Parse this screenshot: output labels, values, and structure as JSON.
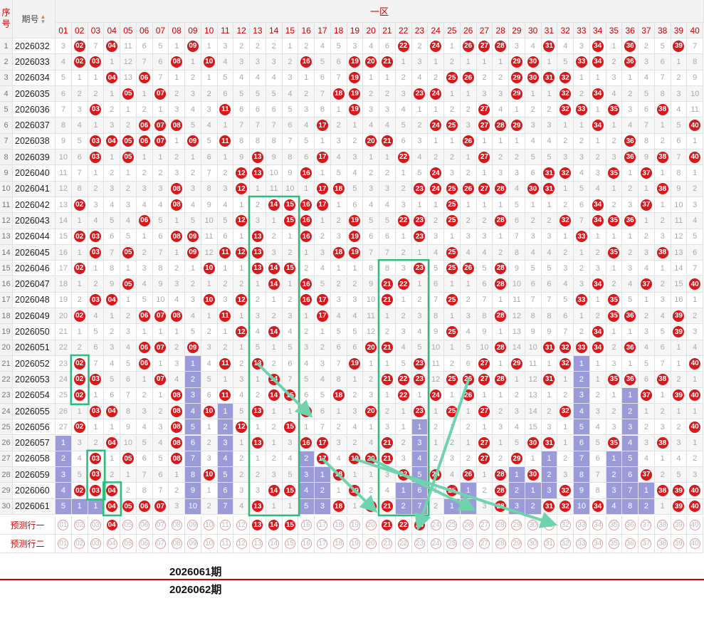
{
  "header": {
    "seq_label": "序号",
    "period_label": "期号",
    "zone_label": "一区",
    "sort_icon": "sort-arrows-icon"
  },
  "numbers": [
    "01",
    "02",
    "03",
    "04",
    "05",
    "06",
    "07",
    "08",
    "09",
    "10",
    "11",
    "12",
    "13",
    "14",
    "15",
    "16",
    "17",
    "18",
    "19",
    "20",
    "21",
    "22",
    "23",
    "24",
    "25",
    "26",
    "27",
    "28",
    "29",
    "30",
    "31",
    "32",
    "33",
    "34",
    "35",
    "36",
    "37",
    "38",
    "39",
    "40"
  ],
  "periods": [
    "2026032",
    "2026033",
    "2026034",
    "2026035",
    "2026036",
    "2026037",
    "2026038",
    "2026039",
    "2026040",
    "2026041",
    "2026042",
    "2026043",
    "2026044",
    "2026045",
    "2026046",
    "2026047",
    "2026048",
    "2026049",
    "2026050",
    "2026051",
    "2026052",
    "2026053",
    "2026054",
    "2026055",
    "2026056",
    "2026057",
    "2026058",
    "2026059",
    "2026060",
    "2026061"
  ],
  "chart_data": {
    "type": "table",
    "rows": [
      [
        3,
        "*",
        7,
        "*",
        11,
        6,
        5,
        1,
        "*",
        1,
        3,
        2,
        2,
        2,
        1,
        2,
        4,
        5,
        3,
        4,
        6,
        "*",
        2,
        "*",
        1,
        "*",
        "*",
        "*",
        3,
        4,
        "*",
        4,
        3,
        "*",
        1,
        "*",
        2,
        5,
        "*",
        7
      ],
      [
        4,
        "*",
        "*",
        1,
        12,
        7,
        6,
        "*",
        1,
        "*",
        4,
        3,
        3,
        3,
        2,
        "*",
        5,
        6,
        "*",
        "*",
        "*",
        1,
        3,
        1,
        2,
        1,
        1,
        1,
        "*",
        "*",
        1,
        5,
        "*",
        "*",
        2,
        "*",
        3,
        6,
        1,
        8
      ],
      [
        5,
        1,
        1,
        "*",
        13,
        "*",
        7,
        1,
        2,
        1,
        5,
        4,
        4,
        4,
        3,
        1,
        6,
        7,
        "*",
        1,
        1,
        2,
        4,
        2,
        "*",
        "*",
        2,
        2,
        "*",
        "*",
        "*",
        "*",
        1,
        1,
        3,
        1,
        4,
        7,
        2,
        9
      ],
      [
        6,
        2,
        2,
        1,
        "*",
        1,
        "*",
        2,
        3,
        2,
        6,
        5,
        5,
        5,
        4,
        2,
        7,
        "*",
        "*",
        2,
        2,
        3,
        "*",
        "*",
        1,
        1,
        3,
        3,
        "*",
        1,
        1,
        "*",
        2,
        "*",
        4,
        2,
        5,
        8,
        3,
        10
      ],
      [
        7,
        3,
        "*",
        2,
        1,
        2,
        1,
        3,
        4,
        3,
        "*",
        6,
        6,
        6,
        5,
        3,
        8,
        1,
        "*",
        3,
        3,
        4,
        1,
        1,
        2,
        2,
        "*",
        4,
        1,
        2,
        2,
        "*",
        "*",
        1,
        "*",
        3,
        6,
        "*",
        4,
        11
      ],
      [
        8,
        4,
        1,
        3,
        2,
        "*",
        "*",
        "*",
        5,
        4,
        1,
        7,
        7,
        7,
        6,
        4,
        "*",
        2,
        1,
        4,
        4,
        5,
        2,
        "*",
        "*",
        3,
        "*",
        "*",
        "*",
        3,
        3,
        1,
        1,
        "*",
        1,
        4,
        7,
        1,
        5,
        "*"
      ],
      [
        9,
        5,
        "*",
        "*",
        "*",
        "*",
        "*",
        1,
        "*",
        5,
        "*",
        8,
        8,
        8,
        7,
        5,
        1,
        3,
        2,
        "*",
        "*",
        6,
        3,
        1,
        1,
        "*",
        1,
        1,
        1,
        4,
        4,
        2,
        2,
        1,
        2,
        "*",
        8,
        2,
        6,
        1
      ],
      [
        10,
        6,
        "*",
        1,
        "*",
        1,
        1,
        2,
        1,
        6,
        1,
        9,
        "*",
        9,
        8,
        6,
        "*",
        4,
        3,
        1,
        1,
        "*",
        4,
        2,
        2,
        1,
        "*",
        2,
        2,
        5,
        5,
        3,
        3,
        2,
        3,
        "*",
        9,
        "*",
        7,
        "*"
      ],
      [
        11,
        7,
        1,
        2,
        1,
        2,
        2,
        3,
        2,
        7,
        2,
        "*",
        "*",
        10,
        9,
        "*",
        1,
        5,
        4,
        2,
        2,
        1,
        5,
        "*",
        3,
        2,
        1,
        3,
        3,
        6,
        "*",
        "*",
        4,
        3,
        "*",
        1,
        "*",
        1,
        8,
        1
      ],
      [
        12,
        8,
        2,
        3,
        2,
        3,
        3,
        "*",
        3,
        8,
        3,
        "*",
        1,
        11,
        10,
        1,
        "*",
        "*",
        5,
        3,
        3,
        2,
        "*",
        "*",
        "*",
        "*",
        "*",
        "*",
        4,
        "*",
        "*",
        1,
        5,
        4,
        1,
        2,
        1,
        "*",
        9,
        2
      ],
      [
        13,
        "*",
        3,
        4,
        3,
        4,
        4,
        "*",
        4,
        9,
        4,
        1,
        2,
        "*",
        "*",
        "*",
        "*",
        1,
        6,
        4,
        4,
        3,
        1,
        1,
        "*",
        1,
        1,
        1,
        5,
        1,
        1,
        2,
        6,
        "*",
        2,
        3,
        "*",
        1,
        10,
        3
      ],
      [
        14,
        1,
        4,
        5,
        4,
        "*",
        5,
        1,
        5,
        10,
        5,
        "*",
        3,
        1,
        "*",
        "*",
        1,
        2,
        "*",
        5,
        5,
        "*",
        "*",
        2,
        "*",
        2,
        2,
        "*",
        6,
        2,
        2,
        "*",
        7,
        "*",
        "*",
        "*",
        1,
        2,
        11,
        4
      ],
      [
        15,
        "*",
        "*",
        6,
        5,
        1,
        6,
        "*",
        "*",
        11,
        6,
        1,
        "*",
        2,
        1,
        "*",
        2,
        3,
        "*",
        6,
        6,
        1,
        "*",
        3,
        1,
        3,
        3,
        1,
        7,
        3,
        3,
        1,
        "*",
        1,
        1,
        1,
        2,
        3,
        12,
        5
      ],
      [
        16,
        1,
        "*",
        7,
        "*",
        2,
        7,
        1,
        "*",
        12,
        "*",
        "*",
        "*",
        3,
        2,
        1,
        3,
        "*",
        "*",
        7,
        7,
        2,
        1,
        4,
        "*",
        4,
        4,
        2,
        8,
        4,
        4,
        2,
        1,
        2,
        "*",
        2,
        3,
        "*",
        13,
        6
      ],
      [
        17,
        "*",
        1,
        8,
        1,
        3,
        8,
        2,
        1,
        "*",
        1,
        1,
        "*",
        "*",
        "*",
        2,
        4,
        1,
        1,
        8,
        8,
        3,
        "*",
        5,
        "*",
        "*",
        5,
        "*",
        9,
        5,
        5,
        3,
        2,
        3,
        1,
        3,
        4,
        1,
        14,
        7
      ],
      [
        18,
        1,
        2,
        9,
        "*",
        4,
        9,
        3,
        2,
        1,
        2,
        2,
        1,
        "*",
        1,
        "*",
        5,
        2,
        2,
        9,
        "*",
        "*",
        1,
        6,
        1,
        1,
        6,
        "*",
        10,
        6,
        6,
        4,
        3,
        "*",
        2,
        4,
        "*",
        2,
        15,
        "*"
      ],
      [
        19,
        2,
        "*",
        "*",
        1,
        5,
        10,
        4,
        3,
        "*",
        3,
        "*",
        2,
        1,
        2,
        "*",
        "*",
        3,
        3,
        10,
        "*",
        1,
        2,
        7,
        "*",
        2,
        7,
        1,
        11,
        7,
        7,
        5,
        "*",
        1,
        "*",
        5,
        1,
        3,
        16,
        1
      ],
      [
        20,
        "*",
        4,
        1,
        2,
        "*",
        "*",
        "*",
        4,
        1,
        "*",
        1,
        3,
        2,
        3,
        1,
        "*",
        4,
        4,
        11,
        1,
        2,
        3,
        8,
        1,
        3,
        8,
        "*",
        12,
        8,
        8,
        6,
        1,
        2,
        "*",
        "*",
        2,
        4,
        "*",
        2
      ],
      [
        21,
        1,
        5,
        2,
        3,
        1,
        1,
        1,
        5,
        2,
        1,
        "*",
        4,
        "*",
        4,
        2,
        1,
        5,
        5,
        12,
        2,
        3,
        4,
        9,
        "*",
        4,
        9,
        1,
        13,
        9,
        9,
        7,
        2,
        "*",
        1,
        1,
        3,
        5,
        "*",
        3
      ],
      [
        22,
        2,
        6,
        3,
        4,
        "*",
        "*",
        2,
        "*",
        3,
        2,
        1,
        5,
        1,
        5,
        3,
        2,
        6,
        6,
        "*",
        "*",
        4,
        5,
        10,
        1,
        5,
        10,
        "*",
        14,
        10,
        "*",
        "*",
        "*",
        "*",
        2,
        "*",
        4,
        6,
        1,
        4
      ],
      [
        23,
        "*",
        7,
        4,
        5,
        "*",
        1,
        3,
        1,
        4,
        "*",
        2,
        "*",
        2,
        6,
        4,
        3,
        7,
        "*",
        1,
        1,
        5,
        "*",
        11,
        2,
        6,
        "*",
        1,
        "*",
        11,
        1,
        "*",
        1,
        1,
        3,
        1,
        5,
        7,
        1,
        "*"
      ],
      [
        24,
        "*",
        "*",
        5,
        6,
        1,
        "*",
        4,
        2,
        5,
        1,
        3,
        1,
        "*",
        7,
        5,
        4,
        8,
        1,
        2,
        "*",
        "*",
        "*",
        12,
        "*",
        "*",
        "*",
        "*",
        1,
        12,
        "*",
        1,
        2,
        1,
        "*",
        "*",
        6,
        "*",
        2,
        1
      ],
      [
        25,
        "*",
        1,
        6,
        7,
        2,
        1,
        "*",
        3,
        6,
        "*",
        4,
        2,
        "*",
        "*",
        6,
        5,
        "*",
        2,
        3,
        1,
        "*",
        1,
        "*",
        1,
        "*",
        1,
        1,
        2,
        13,
        1,
        2,
        3,
        2,
        1,
        1,
        "*",
        1,
        "*",
        "*"
      ],
      [
        26,
        1,
        "*",
        "*",
        8,
        3,
        2,
        "*",
        4,
        "*",
        1,
        5,
        "*",
        1,
        1,
        "*",
        6,
        1,
        3,
        "*",
        2,
        1,
        "*",
        1,
        "*",
        1,
        "*",
        2,
        3,
        14,
        2,
        "*",
        4,
        3,
        2,
        2,
        1,
        2,
        1,
        1
      ],
      [
        27,
        "*",
        1,
        1,
        9,
        4,
        3,
        "*",
        5,
        1,
        2,
        "*",
        1,
        2,
        "*",
        1,
        7,
        2,
        4,
        1,
        3,
        1,
        1,
        2,
        1,
        2,
        1,
        3,
        4,
        15,
        3,
        1,
        5,
        4,
        3,
        3,
        2,
        3,
        2,
        "*"
      ],
      [
        1,
        3,
        2,
        "*",
        10,
        5,
        4,
        "*",
        6,
        2,
        3,
        1,
        "*",
        1,
        3,
        "*",
        "*",
        3,
        2,
        4,
        "*",
        2,
        3,
        1,
        2,
        1,
        "*",
        1,
        5,
        "*",
        "*",
        1,
        6,
        5,
        "*",
        4,
        3,
        "*",
        3,
        1
      ],
      [
        2,
        4,
        "*",
        1,
        "*",
        6,
        5,
        "*",
        7,
        3,
        4,
        2,
        1,
        2,
        4,
        2,
        "*",
        4,
        "*",
        "*",
        "*",
        3,
        4,
        2,
        3,
        2,
        "*",
        2,
        "*",
        1,
        1,
        2,
        7,
        6,
        1,
        5,
        4,
        1,
        4,
        2
      ],
      [
        3,
        5,
        "*",
        2,
        1,
        7,
        6,
        1,
        8,
        "*",
        5,
        2,
        2,
        3,
        5,
        3,
        1,
        "*",
        1,
        1,
        3,
        "*",
        5,
        "*",
        4,
        "*",
        1,
        "*",
        1,
        "*",
        2,
        3,
        8,
        7,
        2,
        6,
        "*",
        2,
        5,
        3
      ],
      [
        4,
        "*",
        "*",
        "*",
        2,
        8,
        7,
        2,
        9,
        1,
        6,
        3,
        3,
        "*",
        "*",
        4,
        2,
        1,
        "*",
        2,
        4,
        1,
        6,
        1,
        "*",
        1,
        2,
        "*",
        2,
        1,
        3,
        "*",
        9,
        8,
        3,
        7,
        1,
        "*",
        "*",
        "*"
      ],
      [
        5,
        1,
        1,
        "*",
        "*",
        "*",
        "*",
        3,
        10,
        2,
        7,
        4,
        "*",
        1,
        1,
        5,
        3,
        "*",
        1,
        "*",
        "*",
        2,
        7,
        2,
        1,
        2,
        3,
        "*",
        3,
        2,
        "*",
        "*",
        10,
        "*",
        4,
        8,
        2,
        1,
        "*",
        "*"
      ]
    ],
    "miss_fill": [
      [
        26,
        1
      ],
      [
        27,
        1
      ],
      [
        28,
        1
      ],
      [
        29,
        1
      ],
      [
        30,
        1
      ],
      [
        30,
        2
      ],
      [
        30,
        3
      ],
      [
        21,
        9
      ],
      [
        22,
        9
      ],
      [
        23,
        9
      ],
      [
        24,
        9
      ],
      [
        25,
        9
      ],
      [
        26,
        9
      ],
      [
        27,
        9
      ],
      [
        28,
        9
      ],
      [
        29,
        9
      ],
      [
        30,
        9
      ],
      [
        24,
        11
      ],
      [
        25,
        11
      ],
      [
        26,
        11
      ],
      [
        27,
        11
      ],
      [
        28,
        11
      ],
      [
        29,
        11
      ],
      [
        30,
        11
      ],
      [
        26,
        16
      ],
      [
        27,
        16
      ],
      [
        28,
        16
      ],
      [
        29,
        16
      ],
      [
        30,
        16
      ],
      [
        28,
        17
      ],
      [
        29,
        17
      ],
      [
        30,
        17
      ],
      [
        29,
        22
      ],
      [
        30,
        22
      ],
      [
        24,
        23
      ],
      [
        25,
        23
      ],
      [
        26,
        23
      ],
      [
        27,
        23
      ],
      [
        28,
        23
      ],
      [
        29,
        23
      ],
      [
        30,
        23
      ],
      [
        29,
        25
      ],
      [
        30,
        25
      ],
      [
        28,
        26
      ],
      [
        29,
        26
      ],
      [
        30,
        26
      ],
      [
        28,
        28
      ],
      [
        29,
        28
      ],
      [
        30,
        28
      ],
      [
        28,
        29
      ],
      [
        29,
        29
      ],
      [
        30,
        29
      ],
      [
        28,
        30
      ],
      [
        29,
        30
      ],
      [
        30,
        30
      ],
      [
        27,
        31
      ],
      [
        28,
        31
      ],
      [
        29,
        31
      ],
      [
        21,
        33
      ],
      [
        22,
        33
      ],
      [
        23,
        33
      ],
      [
        24,
        33
      ],
      [
        25,
        33
      ],
      [
        26,
        33
      ],
      [
        27,
        33
      ],
      [
        28,
        33
      ],
      [
        29,
        33
      ],
      [
        30,
        33
      ],
      [
        27,
        35
      ],
      [
        28,
        35
      ],
      [
        29,
        35
      ],
      [
        30,
        35
      ],
      [
        23,
        36
      ],
      [
        24,
        36
      ],
      [
        25,
        36
      ],
      [
        26,
        36
      ],
      [
        27,
        36
      ],
      [
        28,
        36
      ],
      [
        29,
        36
      ],
      [
        30,
        36
      ],
      [
        29,
        37
      ],
      [
        30,
        37
      ]
    ],
    "predict_rows": [
      {
        "label": "预测行一",
        "selected": [
          "04",
          "13",
          "14",
          "15",
          "21",
          "22",
          "23"
        ]
      },
      {
        "label": "预测行二",
        "selected": []
      }
    ]
  },
  "annotations": {
    "note1": "2026061期",
    "note2": "2026062期"
  },
  "colors": {
    "ball": "#d7191c",
    "fill": "#9b9bd9",
    "box": "#2dbd7c",
    "arrow": "#6fd4ae"
  }
}
